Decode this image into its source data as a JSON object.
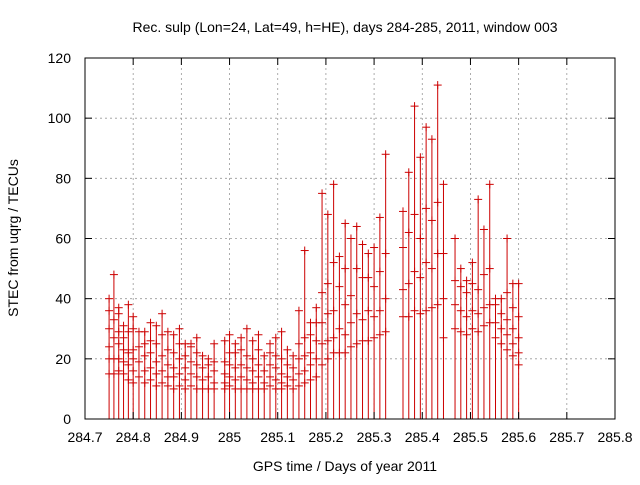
{
  "chart_data": {
    "type": "bar",
    "title": "Rec. sulp (Lon=24, Lat=49, h=HE), days 284-285, 2011, window 003",
    "xlabel": "GPS time / Days of year 2011",
    "ylabel": "STEC from uqrg / TECUs",
    "xlim": [
      284.7,
      285.8
    ],
    "ylim": [
      0,
      120
    ],
    "xticks": [
      284.7,
      284.8,
      284.9,
      285,
      285.1,
      285.2,
      285.3,
      285.4,
      285.5,
      285.6,
      285.7,
      285.8
    ],
    "xtick_labels": [
      "284.7",
      "284.8",
      "284.9",
      "285",
      "285.1",
      "285.2",
      "285.3",
      "285.4",
      "285.5",
      "285.6",
      "285.7",
      "285.8"
    ],
    "yticks": [
      0,
      20,
      40,
      60,
      80,
      100,
      120
    ],
    "ytick_labels": [
      "0",
      "20",
      "40",
      "60",
      "80",
      "100",
      "120"
    ],
    "grid": true,
    "legend": "none",
    "color": "#cc0000",
    "marker": "plus",
    "series": [
      {
        "x": 284.75,
        "values": [
          15,
          20,
          24,
          30,
          36,
          40
        ]
      },
      {
        "x": 284.76,
        "values": [
          15,
          20,
          27,
          33,
          48
        ]
      },
      {
        "x": 284.77,
        "values": [
          16,
          20,
          25,
          29,
          35,
          37
        ]
      },
      {
        "x": 284.78,
        "values": [
          15,
          19,
          23,
          27,
          31
        ]
      },
      {
        "x": 284.79,
        "values": [
          13,
          18,
          22,
          29,
          38
        ]
      },
      {
        "x": 284.8,
        "values": [
          12,
          16,
          20,
          23,
          30,
          34
        ]
      },
      {
        "x": 284.812,
        "values": [
          14,
          19,
          24,
          29
        ]
      },
      {
        "x": 284.824,
        "values": [
          12,
          16,
          21,
          25,
          29
        ]
      },
      {
        "x": 284.836,
        "values": [
          13,
          17,
          22,
          26,
          32
        ]
      },
      {
        "x": 284.848,
        "values": [
          11,
          15,
          19,
          25,
          31
        ]
      },
      {
        "x": 284.86,
        "values": [
          12,
          16,
          21,
          28,
          35
        ]
      },
      {
        "x": 284.872,
        "values": [
          11,
          14,
          18,
          23,
          29
        ]
      },
      {
        "x": 284.884,
        "values": [
          10,
          14,
          17,
          22,
          28
        ]
      },
      {
        "x": 284.896,
        "values": [
          11,
          15,
          20,
          25,
          30
        ]
      },
      {
        "x": 284.908,
        "values": [
          10,
          13,
          17,
          21,
          25
        ]
      },
      {
        "x": 284.92,
        "values": [
          11,
          15,
          19,
          24,
          25
        ]
      },
      {
        "x": 284.932,
        "values": [
          10,
          14,
          18,
          22,
          27
        ]
      },
      {
        "x": 284.944,
        "values": [
          10,
          13,
          17,
          21
        ]
      },
      {
        "x": 284.956,
        "values": [
          10,
          14,
          18,
          20
        ]
      },
      {
        "x": 284.968,
        "values": [
          10,
          12,
          16,
          19,
          25
        ]
      },
      {
        "x": 284.99,
        "values": [
          10,
          12,
          15,
          19,
          26
        ]
      },
      {
        "x": 285.0,
        "values": [
          11,
          14,
          18,
          22,
          28
        ]
      },
      {
        "x": 285.012,
        "values": [
          10,
          13,
          17,
          22,
          25
        ]
      },
      {
        "x": 285.024,
        "values": [
          10,
          14,
          18,
          23,
          27
        ]
      },
      {
        "x": 285.036,
        "values": [
          10,
          13,
          17,
          21,
          30
        ]
      },
      {
        "x": 285.048,
        "values": [
          10,
          12,
          16,
          20,
          26
        ]
      },
      {
        "x": 285.06,
        "values": [
          10,
          14,
          18,
          23,
          28
        ]
      },
      {
        "x": 285.072,
        "values": [
          10,
          12,
          16,
          21
        ]
      },
      {
        "x": 285.084,
        "values": [
          11,
          14,
          18,
          22,
          25
        ]
      },
      {
        "x": 285.096,
        "values": [
          10,
          13,
          17,
          21,
          27
        ]
      },
      {
        "x": 285.108,
        "values": [
          10,
          12,
          15,
          20,
          29
        ]
      },
      {
        "x": 285.12,
        "values": [
          11,
          14,
          18,
          23
        ]
      },
      {
        "x": 285.132,
        "values": [
          10,
          13,
          17,
          21
        ]
      },
      {
        "x": 285.144,
        "values": [
          11,
          15,
          20,
          25,
          36
        ]
      },
      {
        "x": 285.156,
        "values": [
          12,
          16,
          21,
          27,
          56
        ]
      },
      {
        "x": 285.168,
        "values": [
          13,
          18,
          22,
          28,
          32
        ]
      },
      {
        "x": 285.18,
        "values": [
          14,
          20,
          26,
          32,
          37
        ]
      },
      {
        "x": 285.192,
        "values": [
          18,
          25,
          32,
          42,
          75
        ]
      },
      {
        "x": 285.204,
        "values": [
          20,
          26,
          35,
          45,
          68
        ]
      },
      {
        "x": 285.216,
        "values": [
          22,
          27,
          36,
          52,
          78
        ]
      },
      {
        "x": 285.228,
        "values": [
          22,
          30,
          44,
          54
        ]
      },
      {
        "x": 285.24,
        "values": [
          22,
          28,
          38,
          50,
          65
        ]
      },
      {
        "x": 285.252,
        "values": [
          24,
          32,
          41,
          60
        ]
      },
      {
        "x": 285.264,
        "values": [
          25,
          35,
          50,
          64
        ]
      },
      {
        "x": 285.276,
        "values": [
          26,
          33,
          47,
          58
        ]
      },
      {
        "x": 285.288,
        "values": [
          26,
          36,
          47,
          55
        ]
      },
      {
        "x": 285.3,
        "values": [
          27,
          34,
          44,
          57
        ]
      },
      {
        "x": 285.312,
        "values": [
          28,
          36,
          49,
          67
        ]
      },
      {
        "x": 285.324,
        "values": [
          29,
          40,
          55,
          88
        ]
      },
      {
        "x": 285.36,
        "values": [
          34,
          43,
          57,
          69
        ]
      },
      {
        "x": 285.372,
        "values": [
          34,
          45,
          62,
          82
        ]
      },
      {
        "x": 285.384,
        "values": [
          36,
          49,
          68,
          104
        ]
      },
      {
        "x": 285.396,
        "values": [
          35,
          47,
          60,
          87
        ]
      },
      {
        "x": 285.408,
        "values": [
          36,
          52,
          70,
          97
        ]
      },
      {
        "x": 285.42,
        "values": [
          37,
          50,
          66,
          93
        ]
      },
      {
        "x": 285.432,
        "values": [
          38,
          55,
          72,
          111
        ]
      },
      {
        "x": 285.444,
        "values": [
          27,
          40,
          55,
          78
        ]
      },
      {
        "x": 285.468,
        "values": [
          30,
          38,
          46,
          60
        ]
      },
      {
        "x": 285.48,
        "values": [
          29,
          36,
          44,
          50
        ]
      },
      {
        "x": 285.492,
        "values": [
          28,
          34,
          42,
          46
        ]
      },
      {
        "x": 285.504,
        "values": [
          30,
          36,
          45,
          52
        ]
      },
      {
        "x": 285.516,
        "values": [
          29,
          35,
          43,
          73
        ]
      },
      {
        "x": 285.528,
        "values": [
          31,
          37,
          48,
          63
        ]
      },
      {
        "x": 285.54,
        "values": [
          32,
          38,
          50,
          78
        ]
      },
      {
        "x": 285.552,
        "values": [
          27,
          32,
          38,
          40
        ]
      },
      {
        "x": 285.564,
        "values": [
          25,
          30,
          35,
          40
        ]
      },
      {
        "x": 285.576,
        "values": [
          23,
          28,
          33,
          42,
          60
        ]
      },
      {
        "x": 285.588,
        "values": [
          21,
          25,
          30,
          37,
          45
        ]
      },
      {
        "x": 285.6,
        "values": [
          18,
          22,
          27,
          34,
          45
        ]
      }
    ]
  }
}
